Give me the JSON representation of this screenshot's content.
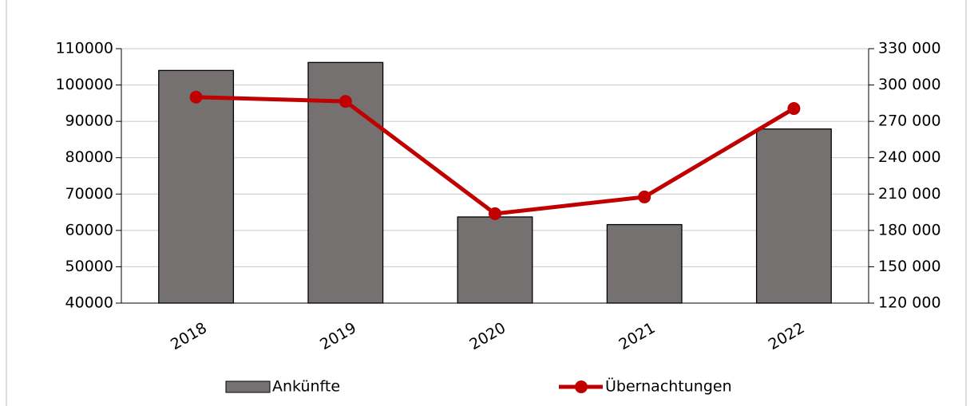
{
  "chart_data": {
    "type": "bar-line",
    "categories": [
      "2018",
      "2019",
      "2020",
      "2021",
      "2022"
    ],
    "series": [
      {
        "name": "Ankünfte",
        "type": "bar",
        "color": "#767171",
        "values": [
          104000,
          106200,
          63700,
          61600,
          87900
        ]
      },
      {
        "name": "Übernachtungen",
        "type": "line",
        "axis": "y2",
        "color": "#c00000",
        "values": [
          290000,
          286500,
          193800,
          207600,
          280600
        ]
      }
    ],
    "ylim": [
      40000,
      110000
    ],
    "yticks": [
      40000,
      50000,
      60000,
      70000,
      80000,
      90000,
      100000,
      110000
    ],
    "y2lim": [
      120000,
      330000
    ],
    "y2ticks": [
      {
        "value": 120000,
        "label": "120 000"
      },
      {
        "value": 150000,
        "label": "150 000"
      },
      {
        "value": 180000,
        "label": "180 000"
      },
      {
        "value": 210000,
        "label": "210 000"
      },
      {
        "value": 240000,
        "label": "240 000"
      },
      {
        "value": 270000,
        "label": "270 000"
      },
      {
        "value": 300000,
        "label": "300 000"
      },
      {
        "value": 330000,
        "label": "330 000"
      }
    ],
    "grid": true,
    "legend": "bottom"
  }
}
